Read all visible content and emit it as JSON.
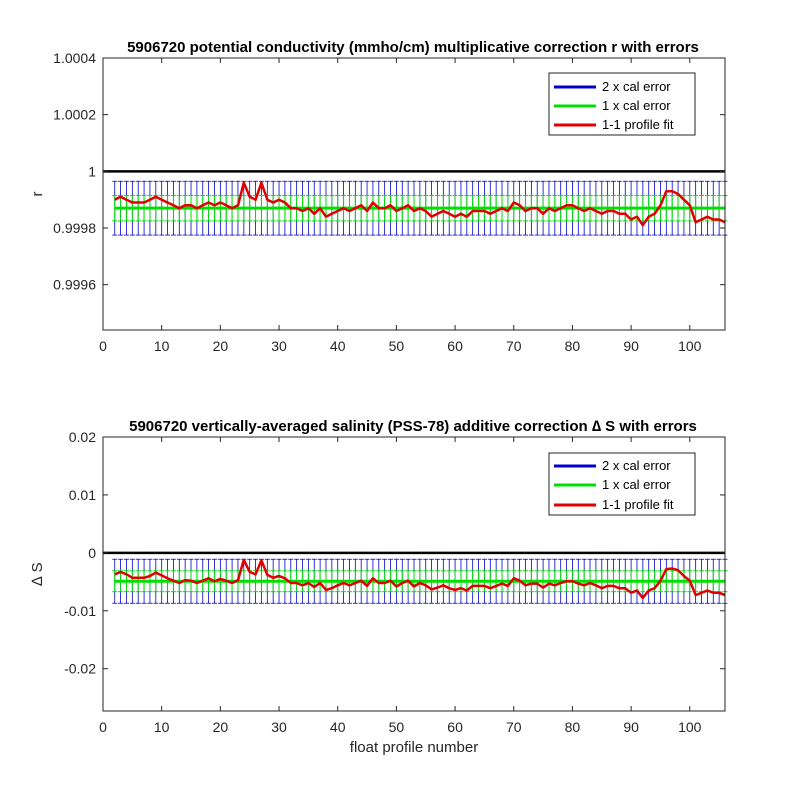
{
  "chart_data": [
    {
      "type": "line",
      "title": "5906720 potential conductivity (mmho/cm) multiplicative correction r with errors",
      "xlabel": "",
      "ylabel": "r",
      "xlim": [
        0,
        106
      ],
      "ylim": [
        0.99944,
        1.0004
      ],
      "xticks": [
        0,
        10,
        20,
        30,
        40,
        50,
        60,
        70,
        80,
        90,
        100
      ],
      "yticks": [
        0.9996,
        0.9998,
        1,
        1.0002,
        1.0004
      ],
      "ytick_labels": [
        "0.9996",
        "0.9998",
        "1",
        "1.0002",
        "1.0004"
      ],
      "reference_line": 1,
      "legend_position": "top-right",
      "legend": [
        "2 x cal error",
        "1 x cal error",
        "1-1 profile fit"
      ],
      "series_colors": [
        "#0000cc",
        "#00e000",
        "#e00000"
      ],
      "x": [
        2,
        3,
        4,
        5,
        6,
        7,
        8,
        9,
        10,
        11,
        12,
        13,
        14,
        15,
        16,
        17,
        18,
        19,
        20,
        21,
        22,
        23,
        24,
        25,
        26,
        27,
        28,
        29,
        30,
        31,
        32,
        33,
        34,
        35,
        36,
        37,
        38,
        39,
        40,
        41,
        42,
        43,
        44,
        45,
        46,
        47,
        48,
        49,
        50,
        51,
        52,
        53,
        54,
        55,
        56,
        57,
        58,
        59,
        60,
        61,
        62,
        63,
        64,
        65,
        66,
        67,
        68,
        69,
        70,
        71,
        72,
        73,
        74,
        75,
        76,
        77,
        78,
        79,
        80,
        81,
        82,
        83,
        84,
        85,
        86,
        87,
        88,
        89,
        90,
        91,
        92,
        93,
        94,
        95,
        96,
        97,
        98,
        99,
        100,
        101,
        102,
        103,
        104,
        105,
        106
      ],
      "series": [
        {
          "name": "1-1 profile fit",
          "values": [
            0.9999,
            0.99991,
            0.9999,
            0.99989,
            0.99989,
            0.99989,
            0.9999,
            0.99991,
            0.9999,
            0.99989,
            0.99988,
            0.99987,
            0.99988,
            0.99988,
            0.99987,
            0.99988,
            0.99989,
            0.99988,
            0.99989,
            0.99988,
            0.99987,
            0.99988,
            0.99996,
            0.99991,
            0.9999,
            0.99996,
            0.9999,
            0.99989,
            0.9999,
            0.99989,
            0.99987,
            0.99987,
            0.99986,
            0.99987,
            0.99985,
            0.99987,
            0.99984,
            0.99985,
            0.99986,
            0.99987,
            0.99986,
            0.99987,
            0.99988,
            0.99986,
            0.99989,
            0.99987,
            0.99987,
            0.99988,
            0.99986,
            0.99987,
            0.99988,
            0.99986,
            0.99987,
            0.99986,
            0.99984,
            0.99985,
            0.99986,
            0.99985,
            0.99984,
            0.99985,
            0.99984,
            0.99986,
            0.99986,
            0.99986,
            0.99985,
            0.99986,
            0.99987,
            0.99986,
            0.99989,
            0.99988,
            0.99986,
            0.99987,
            0.99987,
            0.99985,
            0.99987,
            0.99986,
            0.99987,
            0.99988,
            0.99988,
            0.99987,
            0.99986,
            0.99987,
            0.99986,
            0.99985,
            0.99986,
            0.99986,
            0.99985,
            0.99985,
            0.99983,
            0.99984,
            0.99981,
            0.99984,
            0.99985,
            0.99988,
            0.99993,
            0.99993,
            0.99992,
            0.9999,
            0.99988,
            0.99982,
            0.99983,
            0.99984,
            0.99983,
            0.99983,
            0.99982
          ]
        }
      ],
      "errors": {
        "center": 0.99987,
        "one_x": 4.5e-05,
        "two_x": 9.5e-05
      }
    },
    {
      "type": "line",
      "title": "5906720 vertically-averaged salinity (PSS-78) additive correction ∆ S with errors",
      "xlabel": "float profile number",
      "ylabel": "∆ S",
      "xlim": [
        0,
        106
      ],
      "ylim": [
        -0.0273,
        0.02
      ],
      "xticks": [
        0,
        10,
        20,
        30,
        40,
        50,
        60,
        70,
        80,
        90,
        100
      ],
      "yticks": [
        -0.02,
        -0.01,
        0,
        0.01,
        0.02
      ],
      "ytick_labels": [
        "-0.02",
        "-0.01",
        "0",
        "0.01",
        "0.02"
      ],
      "reference_line": 0,
      "legend_position": "top-right",
      "legend": [
        "2 x cal error",
        "1 x cal error",
        "1-1 profile fit"
      ],
      "series_colors": [
        "#0000cc",
        "#00e000",
        "#e00000"
      ],
      "x": [
        2,
        3,
        4,
        5,
        6,
        7,
        8,
        9,
        10,
        11,
        12,
        13,
        14,
        15,
        16,
        17,
        18,
        19,
        20,
        21,
        22,
        23,
        24,
        25,
        26,
        27,
        28,
        29,
        30,
        31,
        32,
        33,
        34,
        35,
        36,
        37,
        38,
        39,
        40,
        41,
        42,
        43,
        44,
        45,
        46,
        47,
        48,
        49,
        50,
        51,
        52,
        53,
        54,
        55,
        56,
        57,
        58,
        59,
        60,
        61,
        62,
        63,
        64,
        65,
        66,
        67,
        68,
        69,
        70,
        71,
        72,
        73,
        74,
        75,
        76,
        77,
        78,
        79,
        80,
        81,
        82,
        83,
        84,
        85,
        86,
        87,
        88,
        89,
        90,
        91,
        92,
        93,
        94,
        95,
        96,
        97,
        98,
        99,
        100,
        101,
        102,
        103,
        104,
        105,
        106
      ],
      "series": [
        {
          "name": "1-1 profile fit",
          "values": [
            -0.0037,
            -0.0033,
            -0.0037,
            -0.0043,
            -0.0043,
            -0.0043,
            -0.004,
            -0.0034,
            -0.0039,
            -0.0044,
            -0.0048,
            -0.0052,
            -0.0047,
            -0.0048,
            -0.0052,
            -0.0048,
            -0.0044,
            -0.0049,
            -0.0045,
            -0.0048,
            -0.0052,
            -0.0047,
            -0.0012,
            -0.0033,
            -0.0037,
            -0.0013,
            -0.0038,
            -0.0043,
            -0.004,
            -0.0044,
            -0.0052,
            -0.0052,
            -0.0056,
            -0.0052,
            -0.0059,
            -0.0052,
            -0.0064,
            -0.0061,
            -0.0056,
            -0.0052,
            -0.0056,
            -0.0052,
            -0.0048,
            -0.0057,
            -0.0044,
            -0.0052,
            -0.0052,
            -0.0048,
            -0.0058,
            -0.0052,
            -0.0048,
            -0.0058,
            -0.0052,
            -0.0056,
            -0.0063,
            -0.006,
            -0.0056,
            -0.0061,
            -0.0064,
            -0.0061,
            -0.0065,
            -0.0057,
            -0.0057,
            -0.0057,
            -0.0061,
            -0.0057,
            -0.0053,
            -0.0057,
            -0.0044,
            -0.0048,
            -0.0056,
            -0.0053,
            -0.0053,
            -0.006,
            -0.0053,
            -0.0056,
            -0.0052,
            -0.0049,
            -0.0049,
            -0.0053,
            -0.0056,
            -0.0052,
            -0.0056,
            -0.0061,
            -0.0057,
            -0.0057,
            -0.0061,
            -0.0061,
            -0.0069,
            -0.0065,
            -0.0078,
            -0.0065,
            -0.0061,
            -0.0048,
            -0.0028,
            -0.0027,
            -0.003,
            -0.004,
            -0.0048,
            -0.0073,
            -0.0069,
            -0.0065,
            -0.0069,
            -0.0069,
            -0.0073
          ]
        }
      ],
      "errors": {
        "center": -0.0049,
        "one_x": 0.0018,
        "two_x": 0.0038
      }
    }
  ]
}
